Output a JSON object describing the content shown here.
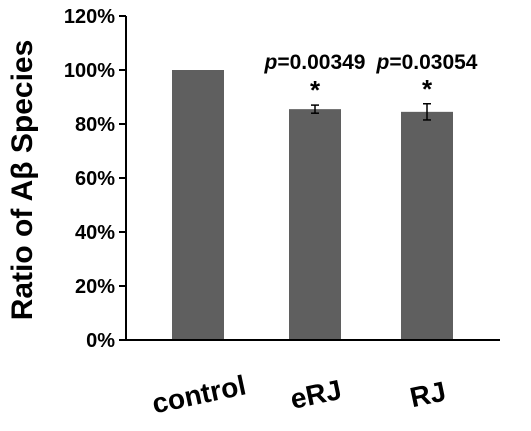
{
  "chart_data": {
    "type": "bar",
    "title": "",
    "xlabel": "",
    "ylabel": "Ratio of Aβ Species",
    "categories": [
      "control",
      "eRJ",
      "RJ"
    ],
    "values": [
      100,
      85.5,
      84.5
    ],
    "errors": [
      0,
      1.5,
      3
    ],
    "annotations": [
      {
        "category": "eRJ",
        "p_prefix": "p",
        "p_value": "=0.00349",
        "marker": "*"
      },
      {
        "category": "RJ",
        "p_prefix": "p",
        "p_value": "=0.03054",
        "marker": "*"
      }
    ],
    "ylim": [
      0,
      120
    ],
    "yticks": [
      0,
      20,
      40,
      60,
      80,
      100,
      120
    ],
    "ytick_labels": [
      "0%",
      "20%",
      "40%",
      "60%",
      "80%",
      "100%",
      "120%"
    ],
    "grid": false,
    "legend": "none",
    "bar_color": "#5f5f5f"
  }
}
